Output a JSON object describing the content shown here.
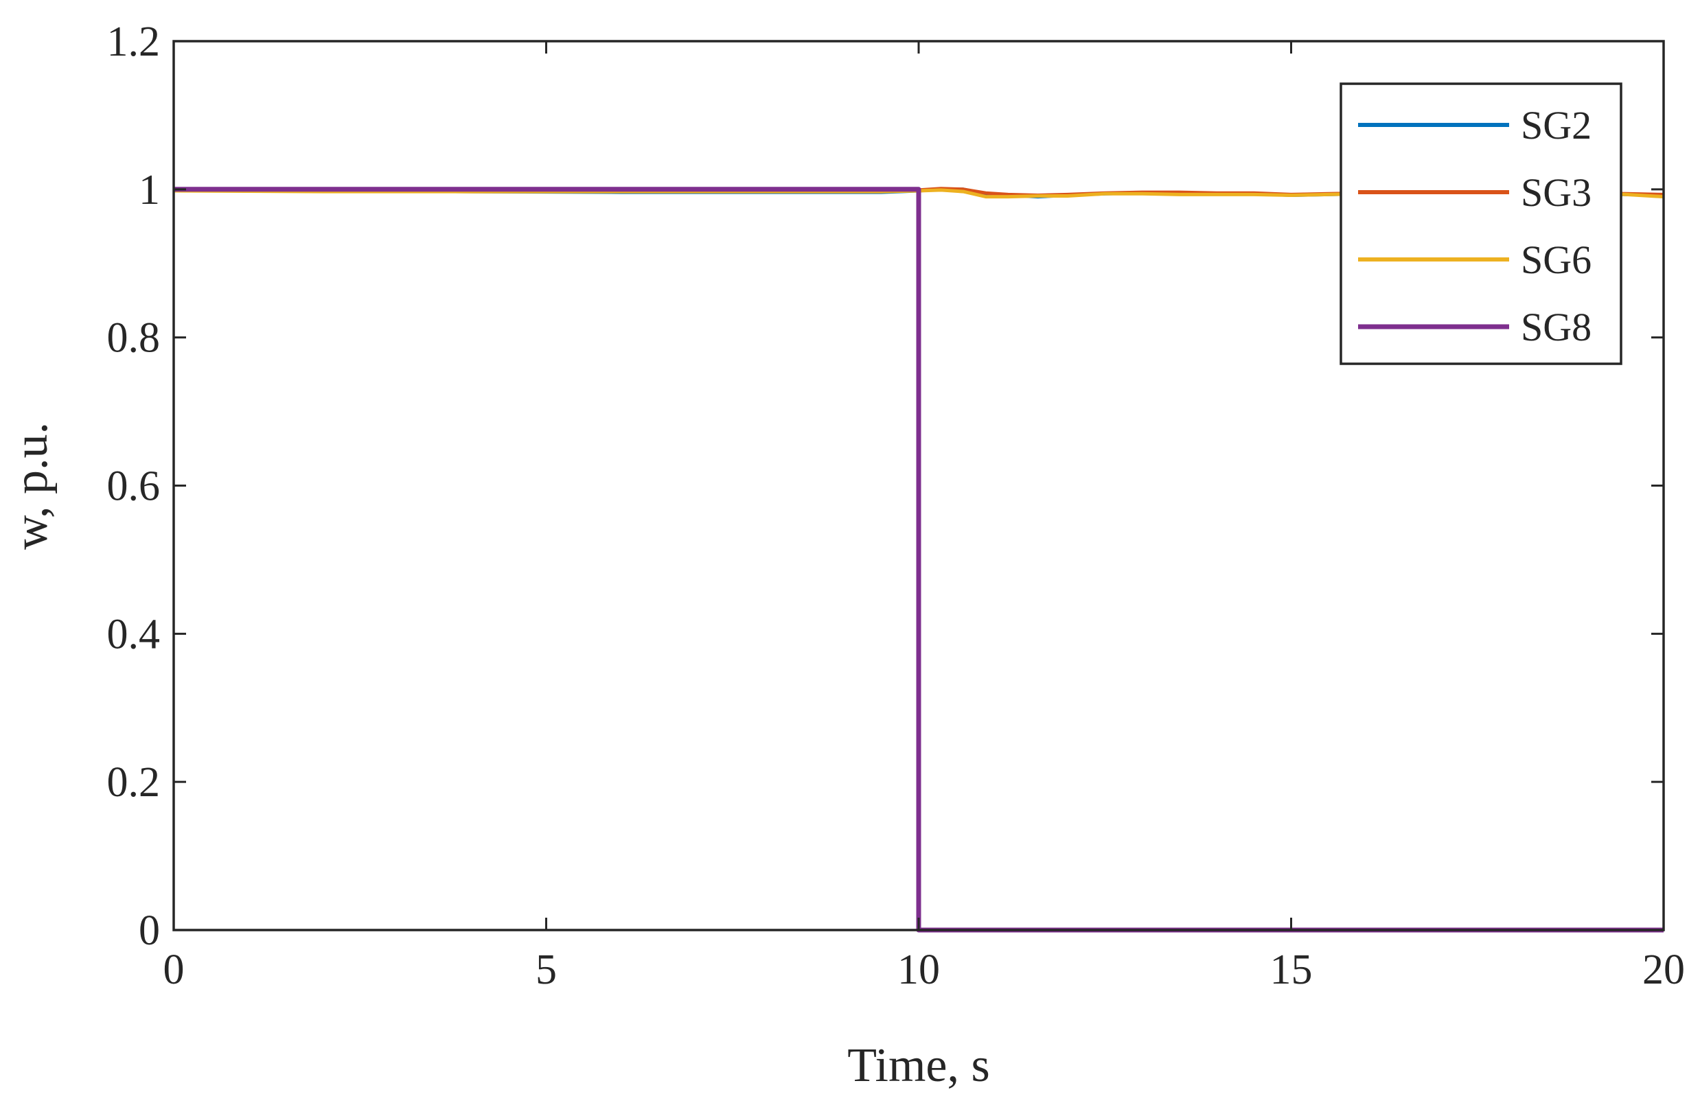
{
  "chart_data": {
    "type": "line",
    "title": "",
    "xlabel": "Time, s",
    "ylabel": "w, p.u.",
    "xlim": [
      0,
      20
    ],
    "ylim": [
      0,
      1.2
    ],
    "xticks": [
      0,
      5,
      10,
      15,
      20
    ],
    "xtick_labels": [
      "0",
      "5",
      "10",
      "15",
      "20"
    ],
    "yticks": [
      0,
      0.2,
      0.4,
      0.6,
      0.8,
      1,
      1.2
    ],
    "ytick_labels": [
      "0",
      "0.2",
      "0.4",
      "0.6",
      "0.8",
      "1",
      "1.2"
    ],
    "grid": false,
    "legend_position": "top-right",
    "series": [
      {
        "name": "SG2",
        "color": "#0072BD",
        "x": [
          0,
          2,
          4,
          6,
          8,
          9.5,
          10,
          10.3,
          10.6,
          10.9,
          11.2,
          11.6,
          12,
          12.5,
          13,
          13.5,
          14,
          14.5,
          15,
          15.5,
          16,
          16.5,
          17,
          17.5,
          18,
          18.5,
          19,
          19.5,
          20
        ],
        "y": [
          1,
          0.998,
          0.997,
          0.996,
          0.996,
          0.996,
          0.998,
          1.0,
          1.0,
          0.994,
          0.992,
          0.99,
          0.992,
          0.994,
          0.995,
          0.995,
          0.994,
          0.994,
          0.992,
          0.993,
          0.994,
          0.995,
          0.995,
          0.996,
          0.995,
          0.995,
          0.994,
          0.993,
          0.992
        ]
      },
      {
        "name": "SG3",
        "color": "#D95319",
        "x": [
          0,
          2,
          4,
          6,
          8,
          9.5,
          10,
          10.3,
          10.6,
          10.9,
          11.2,
          11.6,
          12,
          12.5,
          13,
          13.5,
          14,
          14.5,
          15,
          15.5,
          16,
          16.5,
          17,
          17.5,
          18,
          18.5,
          19,
          19.5,
          20
        ],
        "y": [
          1,
          0.998,
          0.997,
          0.997,
          0.997,
          0.997,
          0.999,
          1.001,
          1.0,
          0.995,
          0.993,
          0.992,
          0.993,
          0.995,
          0.996,
          0.996,
          0.995,
          0.995,
          0.993,
          0.994,
          0.995,
          0.996,
          0.996,
          0.996,
          0.996,
          0.995,
          0.995,
          0.994,
          0.993
        ]
      },
      {
        "name": "SG6",
        "color": "#EDB120",
        "x": [
          0,
          2,
          4,
          6,
          8,
          9.5,
          10,
          10.3,
          10.6,
          10.9,
          11.2,
          11.6,
          12,
          12.5,
          13,
          13.5,
          14,
          14.5,
          15,
          15.5,
          16,
          16.5,
          17,
          17.5,
          18,
          18.5,
          19,
          19.5,
          20
        ],
        "y": [
          0.998,
          0.997,
          0.997,
          0.997,
          0.997,
          0.997,
          0.998,
          0.999,
          0.997,
          0.99,
          0.99,
          0.991,
          0.991,
          0.994,
          0.994,
          0.993,
          0.993,
          0.993,
          0.992,
          0.993,
          0.994,
          0.995,
          0.995,
          0.996,
          0.996,
          0.995,
          0.995,
          0.993,
          0.99
        ]
      },
      {
        "name": "SG8",
        "color": "#7E2F8E",
        "x": [
          0,
          10,
          10,
          20
        ],
        "y": [
          1,
          1,
          0,
          0
        ]
      }
    ]
  }
}
